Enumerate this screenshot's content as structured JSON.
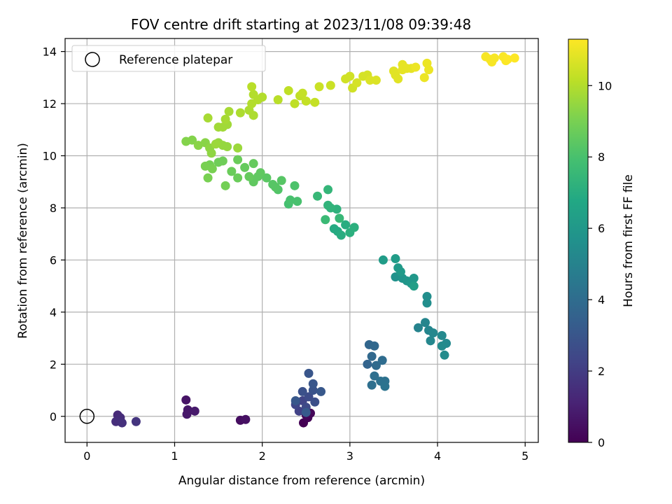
{
  "chart_data": {
    "type": "scatter",
    "title": "FOV centre drift starting at 2023/11/08 09:39:48",
    "xlabel": "Angular distance from reference (arcmin)",
    "ylabel": "Rotation from reference (arcmin)",
    "xlim": [
      -0.25,
      5.15
    ],
    "ylim": [
      -1.0,
      14.5
    ],
    "xticks": [
      0,
      1,
      2,
      3,
      4,
      5
    ],
    "yticks": [
      0,
      2,
      4,
      6,
      8,
      10,
      12,
      14
    ],
    "grid": true,
    "legend": {
      "position": "top-left",
      "entries": [
        {
          "label": "Reference platepar",
          "marker": "open-circle"
        }
      ]
    },
    "reference": {
      "x": 0,
      "y": 0
    },
    "colorbar": {
      "label": "Hours from first FF file",
      "colormap": "viridis",
      "range": [
        0,
        11.3
      ],
      "ticks": [
        0,
        2,
        4,
        6,
        8,
        10
      ]
    },
    "points": [
      {
        "x": 2.47,
        "y": -0.25,
        "c": 0.0
      },
      {
        "x": 2.52,
        "y": -0.05,
        "c": 0.1
      },
      {
        "x": 2.55,
        "y": 0.12,
        "c": 0.15
      },
      {
        "x": 2.5,
        "y": 0.05,
        "c": 0.2
      },
      {
        "x": 1.75,
        "y": -0.15,
        "c": 0.4
      },
      {
        "x": 1.81,
        "y": -0.12,
        "c": 0.5
      },
      {
        "x": 1.13,
        "y": 0.63,
        "c": 0.6
      },
      {
        "x": 1.15,
        "y": 0.25,
        "c": 0.7
      },
      {
        "x": 1.14,
        "y": 0.08,
        "c": 0.75
      },
      {
        "x": 1.23,
        "y": 0.2,
        "c": 0.8
      },
      {
        "x": 0.35,
        "y": 0.05,
        "c": 1.3
      },
      {
        "x": 0.38,
        "y": -0.05,
        "c": 1.4
      },
      {
        "x": 0.33,
        "y": -0.2,
        "c": 1.5
      },
      {
        "x": 0.4,
        "y": -0.25,
        "c": 1.55
      },
      {
        "x": 0.56,
        "y": -0.2,
        "c": 1.7
      },
      {
        "x": 2.42,
        "y": 0.2,
        "c": 2.2
      },
      {
        "x": 2.46,
        "y": 0.6,
        "c": 2.3
      },
      {
        "x": 2.38,
        "y": 0.45,
        "c": 2.4
      },
      {
        "x": 2.5,
        "y": 0.35,
        "c": 2.5
      },
      {
        "x": 2.53,
        "y": 0.75,
        "c": 2.6
      },
      {
        "x": 2.6,
        "y": 0.55,
        "c": 2.7
      },
      {
        "x": 2.46,
        "y": 0.95,
        "c": 2.8
      },
      {
        "x": 2.58,
        "y": 1.0,
        "c": 2.9
      },
      {
        "x": 2.53,
        "y": 1.65,
        "c": 3.0
      },
      {
        "x": 2.58,
        "y": 1.25,
        "c": 3.0
      },
      {
        "x": 2.67,
        "y": 0.95,
        "c": 3.1
      },
      {
        "x": 2.38,
        "y": 0.6,
        "c": 3.1
      },
      {
        "x": 2.5,
        "y": 0.15,
        "c": 3.2
      },
      {
        "x": 3.2,
        "y": 2.0,
        "c": 3.6
      },
      {
        "x": 3.22,
        "y": 2.75,
        "c": 3.7
      },
      {
        "x": 3.28,
        "y": 2.7,
        "c": 3.8
      },
      {
        "x": 3.25,
        "y": 2.3,
        "c": 3.8
      },
      {
        "x": 3.3,
        "y": 1.95,
        "c": 3.9
      },
      {
        "x": 3.37,
        "y": 2.15,
        "c": 4.0
      },
      {
        "x": 3.28,
        "y": 1.55,
        "c": 4.1
      },
      {
        "x": 3.25,
        "y": 1.2,
        "c": 4.1
      },
      {
        "x": 3.35,
        "y": 1.35,
        "c": 4.2
      },
      {
        "x": 3.4,
        "y": 1.35,
        "c": 4.2
      },
      {
        "x": 3.4,
        "y": 1.15,
        "c": 4.3
      },
      {
        "x": 3.78,
        "y": 3.4,
        "c": 5.0
      },
      {
        "x": 3.86,
        "y": 3.6,
        "c": 5.1
      },
      {
        "x": 3.9,
        "y": 3.3,
        "c": 5.1
      },
      {
        "x": 3.95,
        "y": 3.2,
        "c": 5.2
      },
      {
        "x": 3.92,
        "y": 2.9,
        "c": 5.2
      },
      {
        "x": 4.05,
        "y": 3.1,
        "c": 5.3
      },
      {
        "x": 4.1,
        "y": 2.8,
        "c": 5.3
      },
      {
        "x": 4.08,
        "y": 2.35,
        "c": 5.4
      },
      {
        "x": 4.05,
        "y": 2.7,
        "c": 5.4
      },
      {
        "x": 3.88,
        "y": 4.35,
        "c": 5.5
      },
      {
        "x": 3.88,
        "y": 4.6,
        "c": 5.5
      },
      {
        "x": 3.52,
        "y": 5.35,
        "c": 5.7
      },
      {
        "x": 3.6,
        "y": 5.3,
        "c": 5.8
      },
      {
        "x": 3.65,
        "y": 5.2,
        "c": 5.9
      },
      {
        "x": 3.7,
        "y": 5.1,
        "c": 6.0
      },
      {
        "x": 3.73,
        "y": 5.3,
        "c": 6.0
      },
      {
        "x": 3.55,
        "y": 5.7,
        "c": 6.1
      },
      {
        "x": 3.58,
        "y": 5.55,
        "c": 6.1
      },
      {
        "x": 3.52,
        "y": 6.05,
        "c": 6.2
      },
      {
        "x": 3.38,
        "y": 6.0,
        "c": 6.2
      },
      {
        "x": 3.73,
        "y": 5.0,
        "c": 6.3
      },
      {
        "x": 2.82,
        "y": 7.2,
        "c": 6.9
      },
      {
        "x": 2.86,
        "y": 7.1,
        "c": 6.9
      },
      {
        "x": 2.9,
        "y": 6.95,
        "c": 7.0
      },
      {
        "x": 2.95,
        "y": 7.35,
        "c": 7.0
      },
      {
        "x": 3.0,
        "y": 7.05,
        "c": 7.1
      },
      {
        "x": 3.05,
        "y": 7.25,
        "c": 7.1
      },
      {
        "x": 2.85,
        "y": 7.95,
        "c": 7.2
      },
      {
        "x": 2.75,
        "y": 8.1,
        "c": 7.3
      },
      {
        "x": 2.78,
        "y": 8.0,
        "c": 7.3
      },
      {
        "x": 2.75,
        "y": 8.7,
        "c": 7.4
      },
      {
        "x": 2.63,
        "y": 8.45,
        "c": 7.5
      },
      {
        "x": 2.88,
        "y": 7.6,
        "c": 7.5
      },
      {
        "x": 2.72,
        "y": 7.55,
        "c": 7.6
      },
      {
        "x": 2.3,
        "y": 8.15,
        "c": 7.9
      },
      {
        "x": 2.32,
        "y": 8.3,
        "c": 8.0
      },
      {
        "x": 2.4,
        "y": 8.25,
        "c": 8.0
      },
      {
        "x": 2.37,
        "y": 8.85,
        "c": 8.1
      },
      {
        "x": 2.18,
        "y": 8.7,
        "c": 8.2
      },
      {
        "x": 2.22,
        "y": 9.05,
        "c": 8.3
      },
      {
        "x": 2.15,
        "y": 8.8,
        "c": 8.3
      },
      {
        "x": 2.05,
        "y": 9.15,
        "c": 8.4
      },
      {
        "x": 1.98,
        "y": 9.35,
        "c": 8.5
      },
      {
        "x": 1.9,
        "y": 9.0,
        "c": 8.5
      },
      {
        "x": 1.85,
        "y": 9.2,
        "c": 8.6
      },
      {
        "x": 1.8,
        "y": 9.55,
        "c": 8.6
      },
      {
        "x": 1.72,
        "y": 9.85,
        "c": 8.7
      },
      {
        "x": 1.65,
        "y": 9.4,
        "c": 8.7
      },
      {
        "x": 1.55,
        "y": 9.8,
        "c": 8.8
      },
      {
        "x": 1.5,
        "y": 9.75,
        "c": 8.8
      },
      {
        "x": 1.58,
        "y": 8.85,
        "c": 8.9
      },
      {
        "x": 1.4,
        "y": 9.65,
        "c": 8.9
      },
      {
        "x": 1.35,
        "y": 9.6,
        "c": 9.0
      },
      {
        "x": 1.38,
        "y": 9.15,
        "c": 9.0
      },
      {
        "x": 1.43,
        "y": 9.5,
        "c": 9.0
      },
      {
        "x": 1.9,
        "y": 9.7,
        "c": 8.6
      },
      {
        "x": 1.95,
        "y": 9.2,
        "c": 8.5
      },
      {
        "x": 2.12,
        "y": 8.9,
        "c": 8.3
      },
      {
        "x": 1.72,
        "y": 9.15,
        "c": 8.7
      },
      {
        "x": 1.13,
        "y": 10.55,
        "c": 9.2
      },
      {
        "x": 1.2,
        "y": 10.6,
        "c": 9.2
      },
      {
        "x": 1.27,
        "y": 10.4,
        "c": 9.3
      },
      {
        "x": 1.35,
        "y": 10.5,
        "c": 9.3
      },
      {
        "x": 1.4,
        "y": 10.3,
        "c": 9.4
      },
      {
        "x": 1.42,
        "y": 10.1,
        "c": 9.4
      },
      {
        "x": 1.5,
        "y": 10.5,
        "c": 9.5
      },
      {
        "x": 1.55,
        "y": 10.4,
        "c": 9.5
      },
      {
        "x": 1.6,
        "y": 10.35,
        "c": 9.5
      },
      {
        "x": 1.72,
        "y": 10.3,
        "c": 9.6
      },
      {
        "x": 1.47,
        "y": 10.45,
        "c": 9.6
      },
      {
        "x": 1.5,
        "y": 11.1,
        "c": 9.7
      },
      {
        "x": 1.55,
        "y": 11.1,
        "c": 9.7
      },
      {
        "x": 1.6,
        "y": 11.2,
        "c": 9.7
      },
      {
        "x": 1.58,
        "y": 11.4,
        "c": 9.8
      },
      {
        "x": 1.38,
        "y": 11.45,
        "c": 9.8
      },
      {
        "x": 1.62,
        "y": 11.7,
        "c": 9.8
      },
      {
        "x": 1.75,
        "y": 11.65,
        "c": 9.9
      },
      {
        "x": 1.85,
        "y": 11.75,
        "c": 9.9
      },
      {
        "x": 1.9,
        "y": 11.55,
        "c": 9.9
      },
      {
        "x": 1.88,
        "y": 12.0,
        "c": 10.0
      },
      {
        "x": 1.95,
        "y": 12.15,
        "c": 10.0
      },
      {
        "x": 2.0,
        "y": 12.25,
        "c": 10.0
      },
      {
        "x": 1.9,
        "y": 12.35,
        "c": 10.0
      },
      {
        "x": 1.88,
        "y": 12.65,
        "c": 10.1
      },
      {
        "x": 2.18,
        "y": 12.15,
        "c": 10.1
      },
      {
        "x": 2.3,
        "y": 12.5,
        "c": 10.2
      },
      {
        "x": 2.37,
        "y": 12.0,
        "c": 10.2
      },
      {
        "x": 2.43,
        "y": 12.3,
        "c": 10.2
      },
      {
        "x": 2.46,
        "y": 12.4,
        "c": 10.3
      },
      {
        "x": 2.5,
        "y": 12.1,
        "c": 10.3
      },
      {
        "x": 2.6,
        "y": 12.05,
        "c": 10.3
      },
      {
        "x": 2.65,
        "y": 12.65,
        "c": 10.4
      },
      {
        "x": 2.78,
        "y": 12.7,
        "c": 10.4
      },
      {
        "x": 2.95,
        "y": 12.95,
        "c": 10.5
      },
      {
        "x": 3.0,
        "y": 13.05,
        "c": 10.5
      },
      {
        "x": 3.03,
        "y": 12.6,
        "c": 10.5
      },
      {
        "x": 3.08,
        "y": 12.8,
        "c": 10.6
      },
      {
        "x": 3.15,
        "y": 13.05,
        "c": 10.6
      },
      {
        "x": 3.2,
        "y": 13.1,
        "c": 10.6
      },
      {
        "x": 3.23,
        "y": 12.9,
        "c": 10.7
      },
      {
        "x": 3.3,
        "y": 12.9,
        "c": 10.7
      },
      {
        "x": 3.5,
        "y": 13.25,
        "c": 10.8
      },
      {
        "x": 3.52,
        "y": 13.1,
        "c": 10.8
      },
      {
        "x": 3.55,
        "y": 12.95,
        "c": 10.8
      },
      {
        "x": 3.6,
        "y": 13.3,
        "c": 10.9
      },
      {
        "x": 3.6,
        "y": 13.5,
        "c": 10.9
      },
      {
        "x": 3.65,
        "y": 13.35,
        "c": 10.9
      },
      {
        "x": 3.7,
        "y": 13.35,
        "c": 10.9
      },
      {
        "x": 3.75,
        "y": 13.4,
        "c": 11.0
      },
      {
        "x": 3.85,
        "y": 13.0,
        "c": 11.0
      },
      {
        "x": 3.9,
        "y": 13.3,
        "c": 11.0
      },
      {
        "x": 3.88,
        "y": 13.55,
        "c": 11.0
      },
      {
        "x": 4.55,
        "y": 13.8,
        "c": 11.2
      },
      {
        "x": 4.6,
        "y": 13.7,
        "c": 11.2
      },
      {
        "x": 4.62,
        "y": 13.6,
        "c": 11.2
      },
      {
        "x": 4.75,
        "y": 13.8,
        "c": 11.25
      },
      {
        "x": 4.78,
        "y": 13.65,
        "c": 11.25
      },
      {
        "x": 4.8,
        "y": 13.7,
        "c": 11.3
      },
      {
        "x": 4.88,
        "y": 13.75,
        "c": 11.3
      },
      {
        "x": 4.65,
        "y": 13.75,
        "c": 11.2
      }
    ]
  }
}
